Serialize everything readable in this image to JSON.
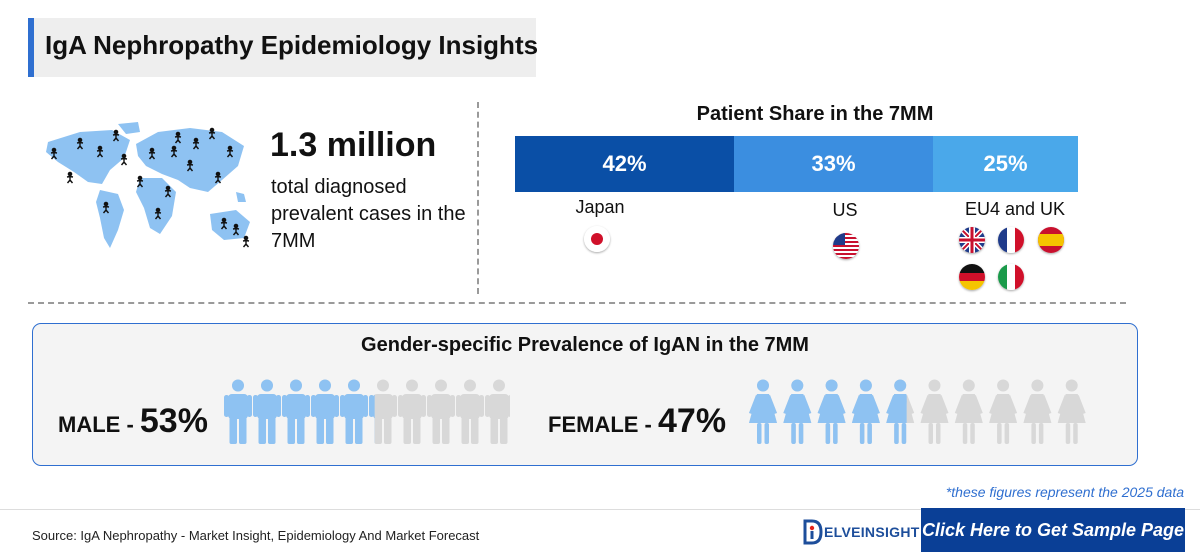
{
  "header": {
    "title": "IgA Nephropathy Epidemiology Insights"
  },
  "prevalence": {
    "value": "1.3 million",
    "description": "total diagnosed prevalent cases in the 7MM"
  },
  "patient_share": {
    "title": "Patient Share in the 7MM",
    "segments": [
      {
        "region": "Japan",
        "share": "42%",
        "color": "#0a4fa6"
      },
      {
        "region": "US",
        "share": "33%",
        "color": "#3b8ee0"
      },
      {
        "region": "EU4 and UK",
        "share": "25%",
        "color": "#4aa8ea"
      }
    ]
  },
  "gender": {
    "title": "Gender-specific Prevalence of IgAN in the 7MM",
    "male": {
      "label": "MALE - ",
      "value": "53%",
      "fraction": 0.53
    },
    "female": {
      "label": "FEMALE - ",
      "value": "47%",
      "fraction": 0.47
    },
    "filled_color": "#8ec2f2",
    "empty_color": "#d8d8d8"
  },
  "footnote": "*these figures represent the 2025 data",
  "footer": {
    "source": "Source: IgA Nephropathy - Market Insight, Epidemiology And Market Forecast",
    "brand": "ELVEINSIGHT",
    "cta": "Click Here to Get Sample Page"
  }
}
